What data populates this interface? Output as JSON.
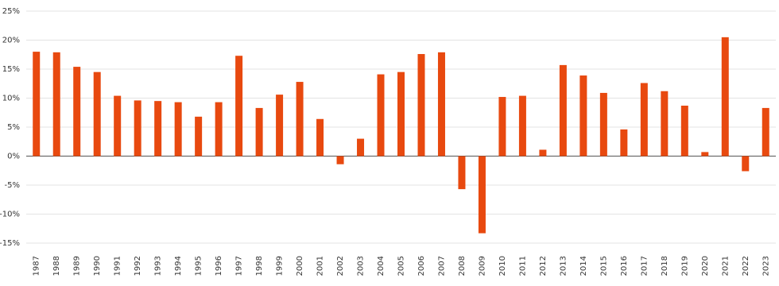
{
  "chart_data": {
    "type": "bar",
    "categories": [
      "1987",
      "1988",
      "1989",
      "1990",
      "1991",
      "1992",
      "1993",
      "1994",
      "1995",
      "1996",
      "1997",
      "1998",
      "1999",
      "2000",
      "2001",
      "2002",
      "2003",
      "2004",
      "2005",
      "2006",
      "2007",
      "2008",
      "2009",
      "2010",
      "2011",
      "2012",
      "2013",
      "2014",
      "2015",
      "2016",
      "2017",
      "2018",
      "2019",
      "2020",
      "2021",
      "2022",
      "2023"
    ],
    "values": [
      18.0,
      17.9,
      15.4,
      14.5,
      10.4,
      9.6,
      9.5,
      9.3,
      6.8,
      9.3,
      17.3,
      8.3,
      10.6,
      12.8,
      6.4,
      -1.4,
      3.0,
      14.1,
      14.5,
      17.6,
      17.9,
      -5.7,
      -13.3,
      10.2,
      10.4,
      1.1,
      15.7,
      13.9,
      10.9,
      4.6,
      12.6,
      11.2,
      8.7,
      0.7,
      20.5,
      -2.6,
      8.3
    ],
    "color": "#e8490f",
    "ylim": [
      -15,
      25
    ],
    "yticks": [
      {
        "value": -15,
        "label": "-15%"
      },
      {
        "value": -10,
        "label": "-10%"
      },
      {
        "value": -5,
        "label": "-5%"
      },
      {
        "value": 0,
        "label": "0%"
      },
      {
        "value": 5,
        "label": "5%"
      },
      {
        "value": 10,
        "label": "10%"
      },
      {
        "value": 15,
        "label": "15%"
      },
      {
        "value": 20,
        "label": "20%"
      },
      {
        "value": 25,
        "label": "25%"
      }
    ],
    "grid": true
  }
}
